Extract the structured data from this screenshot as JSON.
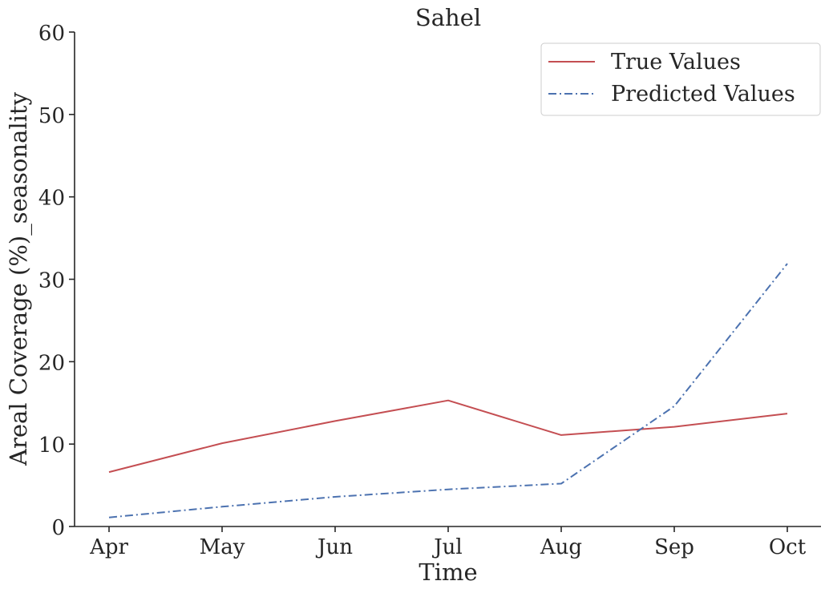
{
  "chart_data": {
    "type": "line",
    "title": "Sahel",
    "xlabel": "Time",
    "ylabel": "Areal Coverage (%)_seasonality",
    "categories": [
      "Apr",
      "May",
      "Jun",
      "Jul",
      "Aug",
      "Sep",
      "Oct"
    ],
    "ylim": [
      0,
      60
    ],
    "yticks": [
      0,
      10,
      20,
      30,
      40,
      50,
      60
    ],
    "grid": false,
    "legend_position": "top-right",
    "series": [
      {
        "name": "True Values",
        "color": "#c44e52",
        "line_style": "solid",
        "values": [
          6.6,
          10.1,
          12.8,
          15.3,
          11.1,
          12.1,
          13.7
        ]
      },
      {
        "name": "Predicted Values",
        "color": "#4c72b0",
        "line_style": "dashdot",
        "values": [
          1.1,
          2.4,
          3.6,
          4.5,
          5.2,
          14.6,
          31.9
        ]
      }
    ]
  }
}
